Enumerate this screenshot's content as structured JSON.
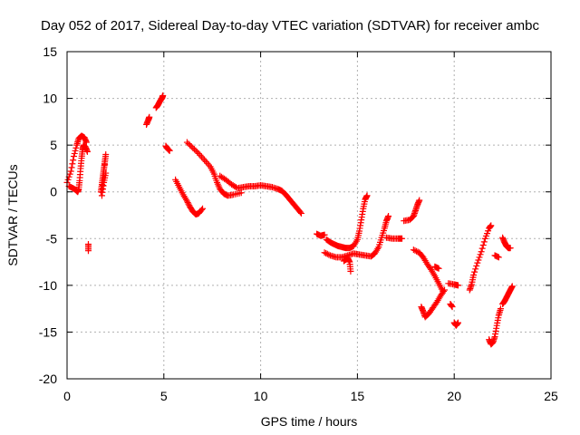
{
  "chart_data": {
    "type": "scatter",
    "title": "Day 052 of 2017, Sidereal Day-to-day VTEC variation (SDTVAR) for receiver ambc",
    "xlabel": "GPS time / hours",
    "ylabel": "SDTVAR / TECUs",
    "xlim": [
      0,
      25
    ],
    "ylim": [
      -20,
      15
    ],
    "x_ticks": [
      0,
      5,
      10,
      15,
      20,
      25
    ],
    "y_ticks": [
      -20,
      -15,
      -10,
      -5,
      0,
      5,
      10,
      15
    ],
    "grid": true,
    "marker": "+",
    "color": "#ff0000",
    "segments": [
      {
        "points": [
          [
            0.0,
            1.0
          ],
          [
            0.2,
            2.2
          ],
          [
            0.35,
            3.8
          ],
          [
            0.5,
            5.0
          ],
          [
            0.6,
            5.7
          ],
          [
            0.75,
            6.0
          ],
          [
            0.9,
            5.8
          ],
          [
            1.0,
            5.3
          ]
        ]
      },
      {
        "points": [
          [
            0.1,
            0.6
          ],
          [
            0.3,
            0.4
          ],
          [
            0.45,
            0.2
          ],
          [
            0.55,
            0.0
          ],
          [
            0.6,
            0.3
          ],
          [
            0.65,
            1.2
          ],
          [
            0.7,
            2.5
          ],
          [
            0.75,
            3.6
          ],
          [
            0.8,
            4.5
          ],
          [
            0.85,
            5.0
          ],
          [
            0.95,
            4.8
          ],
          [
            1.05,
            4.3
          ]
        ]
      },
      {
        "points": [
          [
            1.1,
            -5.6
          ],
          [
            1.1,
            -6.3
          ]
        ]
      },
      {
        "points": [
          [
            1.75,
            0.0
          ],
          [
            1.8,
            0.8
          ],
          [
            1.85,
            1.6
          ],
          [
            1.9,
            2.4
          ],
          [
            1.95,
            3.2
          ],
          [
            2.0,
            4.0
          ],
          [
            1.8,
            -0.4
          ],
          [
            1.9,
            1.0
          ],
          [
            2.0,
            2.0
          ]
        ]
      },
      {
        "points": [
          [
            4.1,
            7.2
          ],
          [
            4.2,
            7.7
          ],
          [
            4.25,
            8.0
          ]
        ]
      },
      {
        "points": [
          [
            4.6,
            9.0
          ],
          [
            4.7,
            9.3
          ],
          [
            4.8,
            9.7
          ],
          [
            4.9,
            10.0
          ],
          [
            4.95,
            10.3
          ]
        ]
      },
      {
        "points": [
          [
            5.1,
            4.9
          ],
          [
            5.2,
            4.6
          ],
          [
            5.3,
            4.4
          ]
        ]
      },
      {
        "points": [
          [
            5.6,
            1.3
          ],
          [
            5.8,
            0.5
          ],
          [
            6.0,
            -0.3
          ],
          [
            6.2,
            -1.0
          ],
          [
            6.35,
            -1.6
          ],
          [
            6.5,
            -2.1
          ],
          [
            6.65,
            -2.4
          ],
          [
            6.8,
            -2.3
          ],
          [
            7.0,
            -1.8
          ]
        ]
      },
      {
        "points": [
          [
            6.2,
            5.3
          ],
          [
            6.5,
            4.7
          ],
          [
            6.8,
            4.1
          ],
          [
            7.1,
            3.4
          ],
          [
            7.4,
            2.7
          ],
          [
            7.6,
            1.9
          ],
          [
            7.75,
            1.0
          ],
          [
            7.9,
            0.3
          ],
          [
            8.1,
            -0.2
          ],
          [
            8.3,
            -0.4
          ],
          [
            8.6,
            -0.3
          ],
          [
            9.0,
            -0.1
          ]
        ]
      },
      {
        "points": [
          [
            7.9,
            1.7
          ],
          [
            8.2,
            1.3
          ],
          [
            8.5,
            0.8
          ],
          [
            8.8,
            0.4
          ],
          [
            9.1,
            0.5
          ],
          [
            9.4,
            0.6
          ],
          [
            9.7,
            0.6
          ],
          [
            10.0,
            0.7
          ],
          [
            10.3,
            0.6
          ],
          [
            10.6,
            0.5
          ],
          [
            10.9,
            0.3
          ],
          [
            11.1,
            0.1
          ],
          [
            11.3,
            -0.3
          ],
          [
            11.5,
            -0.8
          ],
          [
            11.7,
            -1.3
          ],
          [
            11.9,
            -1.8
          ],
          [
            12.1,
            -2.3
          ]
        ]
      },
      {
        "points": [
          [
            12.9,
            -4.5
          ],
          [
            13.1,
            -4.7
          ],
          [
            13.3,
            -4.6
          ]
        ]
      },
      {
        "points": [
          [
            13.4,
            -5.1
          ],
          [
            13.6,
            -5.4
          ],
          [
            13.8,
            -5.6
          ],
          [
            14.0,
            -5.8
          ],
          [
            14.2,
            -5.9
          ],
          [
            14.4,
            -6.0
          ],
          [
            14.6,
            -6.0
          ],
          [
            14.8,
            -5.8
          ],
          [
            15.0,
            -5.1
          ],
          [
            15.1,
            -4.2
          ],
          [
            15.2,
            -3.0
          ],
          [
            15.3,
            -1.8
          ],
          [
            15.4,
            -0.8
          ],
          [
            15.5,
            -0.4
          ]
        ]
      },
      {
        "points": [
          [
            13.3,
            -6.5
          ],
          [
            13.6,
            -6.8
          ],
          [
            13.9,
            -7.0
          ],
          [
            14.2,
            -7.0
          ],
          [
            14.5,
            -6.8
          ],
          [
            14.8,
            -6.6
          ],
          [
            15.1,
            -6.7
          ],
          [
            15.4,
            -6.8
          ],
          [
            15.7,
            -6.9
          ],
          [
            15.9,
            -6.6
          ],
          [
            16.1,
            -5.9
          ],
          [
            16.25,
            -4.9
          ],
          [
            16.4,
            -3.9
          ],
          [
            16.5,
            -3.1
          ],
          [
            16.6,
            -2.6
          ]
        ]
      },
      {
        "points": [
          [
            14.3,
            -7.4
          ],
          [
            14.5,
            -7.1
          ],
          [
            14.6,
            -7.5
          ],
          [
            14.65,
            -8.5
          ]
        ]
      },
      {
        "points": [
          [
            16.5,
            -4.9
          ],
          [
            16.8,
            -5.0
          ],
          [
            17.1,
            -5.0
          ],
          [
            17.3,
            -5.0
          ]
        ]
      },
      {
        "points": [
          [
            17.4,
            -3.1
          ],
          [
            17.7,
            -3.0
          ],
          [
            17.9,
            -2.6
          ],
          [
            18.0,
            -2.0
          ],
          [
            18.1,
            -1.4
          ],
          [
            18.2,
            -0.9
          ]
        ]
      },
      {
        "points": [
          [
            17.9,
            -6.2
          ],
          [
            18.2,
            -6.5
          ],
          [
            18.4,
            -7.0
          ],
          [
            18.6,
            -7.7
          ],
          [
            18.8,
            -8.3
          ],
          [
            19.0,
            -9.0
          ],
          [
            19.2,
            -9.8
          ],
          [
            19.4,
            -10.6
          ]
        ]
      },
      {
        "points": [
          [
            18.3,
            -12.3
          ],
          [
            18.4,
            -12.8
          ],
          [
            18.5,
            -13.4
          ],
          [
            18.7,
            -13.0
          ],
          [
            18.9,
            -12.4
          ],
          [
            19.1,
            -11.8
          ],
          [
            19.3,
            -11.1
          ],
          [
            19.5,
            -10.5
          ]
        ]
      },
      {
        "points": [
          [
            19.0,
            -8.0
          ],
          [
            19.2,
            -8.2
          ]
        ]
      },
      {
        "points": [
          [
            19.7,
            -9.8
          ],
          [
            20.0,
            -9.9
          ],
          [
            20.2,
            -10.0
          ]
        ]
      },
      {
        "points": [
          [
            19.8,
            -12.0
          ],
          [
            19.9,
            -12.3
          ]
        ]
      },
      {
        "points": [
          [
            20.0,
            -14.0
          ],
          [
            20.1,
            -14.3
          ],
          [
            20.2,
            -14.0
          ]
        ]
      },
      {
        "points": [
          [
            20.8,
            -10.5
          ],
          [
            20.9,
            -9.9
          ],
          [
            21.0,
            -8.9
          ],
          [
            21.2,
            -7.6
          ],
          [
            21.4,
            -6.4
          ],
          [
            21.6,
            -5.0
          ],
          [
            21.8,
            -3.9
          ],
          [
            21.9,
            -3.6
          ]
        ]
      },
      {
        "points": [
          [
            21.8,
            -15.8
          ],
          [
            21.9,
            -16.3
          ],
          [
            22.0,
            -16.1
          ],
          [
            22.1,
            -15.5
          ],
          [
            22.2,
            -14.3
          ],
          [
            22.3,
            -13.2
          ],
          [
            22.4,
            -12.5
          ]
        ]
      },
      {
        "points": [
          [
            22.1,
            -6.8
          ],
          [
            22.3,
            -7.0
          ]
        ]
      },
      {
        "points": [
          [
            22.5,
            -12.0
          ],
          [
            22.6,
            -11.7
          ],
          [
            22.7,
            -11.3
          ],
          [
            22.8,
            -10.9
          ],
          [
            22.9,
            -10.5
          ],
          [
            23.0,
            -10.1
          ]
        ]
      },
      {
        "points": [
          [
            22.5,
            -4.9
          ],
          [
            22.6,
            -5.4
          ],
          [
            22.7,
            -5.8
          ],
          [
            22.8,
            -6.0
          ],
          [
            22.9,
            -6.0
          ]
        ]
      }
    ]
  }
}
